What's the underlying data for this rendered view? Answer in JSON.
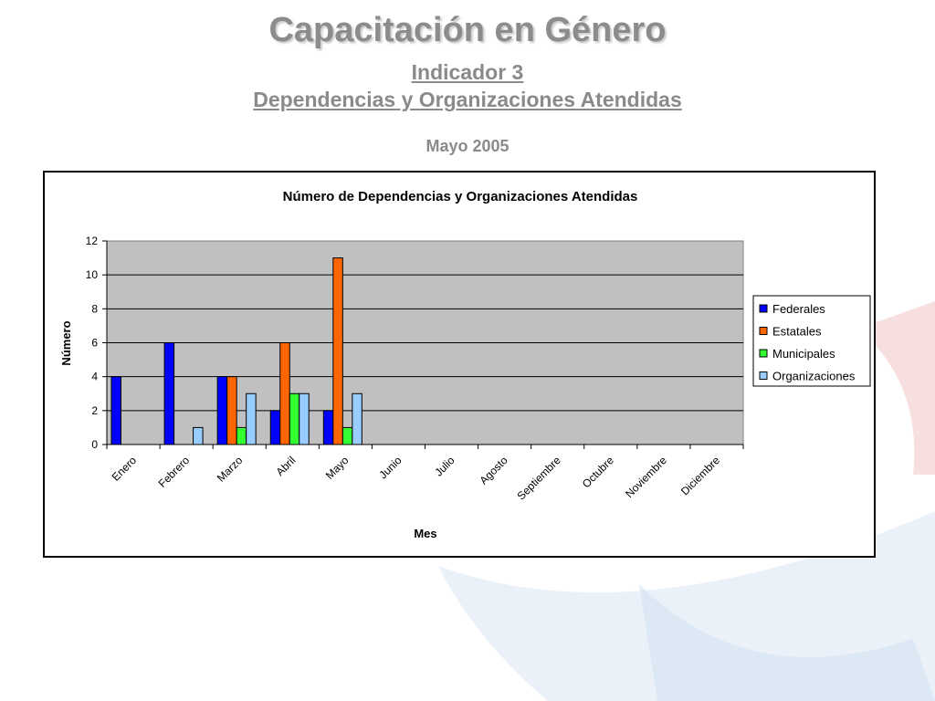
{
  "slide": {
    "title": "Capacitación en Género",
    "subtitle_line1": "Indicador 3",
    "subtitle_line2": "Dependencias y Organizaciones Atendidas",
    "date": "Mayo 2005"
  },
  "chart_data": {
    "type": "bar",
    "title": "Número de Dependencias y Organizaciones Atendidas",
    "xlabel": "Mes",
    "ylabel": "Número",
    "ylim": [
      0,
      12
    ],
    "yticks": [
      0,
      2,
      4,
      6,
      8,
      10,
      12
    ],
    "grid": true,
    "legend_position": "right",
    "categories": [
      "Enero",
      "Febrero",
      "Marzo",
      "Abril",
      "Mayo",
      "Junio",
      "Julio",
      "Agosto",
      "Septiembre",
      "Octubre",
      "Noviembre",
      "Diciembre"
    ],
    "series": [
      {
        "name": "Federales",
        "color": "#0000ff",
        "values": [
          4,
          6,
          4,
          2,
          2,
          null,
          null,
          null,
          null,
          null,
          null,
          null
        ]
      },
      {
        "name": "Estatales",
        "color": "#ff6600",
        "values": [
          null,
          null,
          4,
          6,
          11,
          null,
          null,
          null,
          null,
          null,
          null,
          null
        ]
      },
      {
        "name": "Municipales",
        "color": "#33ff33",
        "values": [
          null,
          null,
          1,
          3,
          1,
          null,
          null,
          null,
          null,
          null,
          null,
          null
        ]
      },
      {
        "name": "Organizaciones",
        "color": "#99ccff",
        "values": [
          null,
          1,
          3,
          3,
          3,
          null,
          null,
          null,
          null,
          null,
          null,
          null
        ]
      }
    ],
    "plot_background": "#c0c0c0"
  }
}
